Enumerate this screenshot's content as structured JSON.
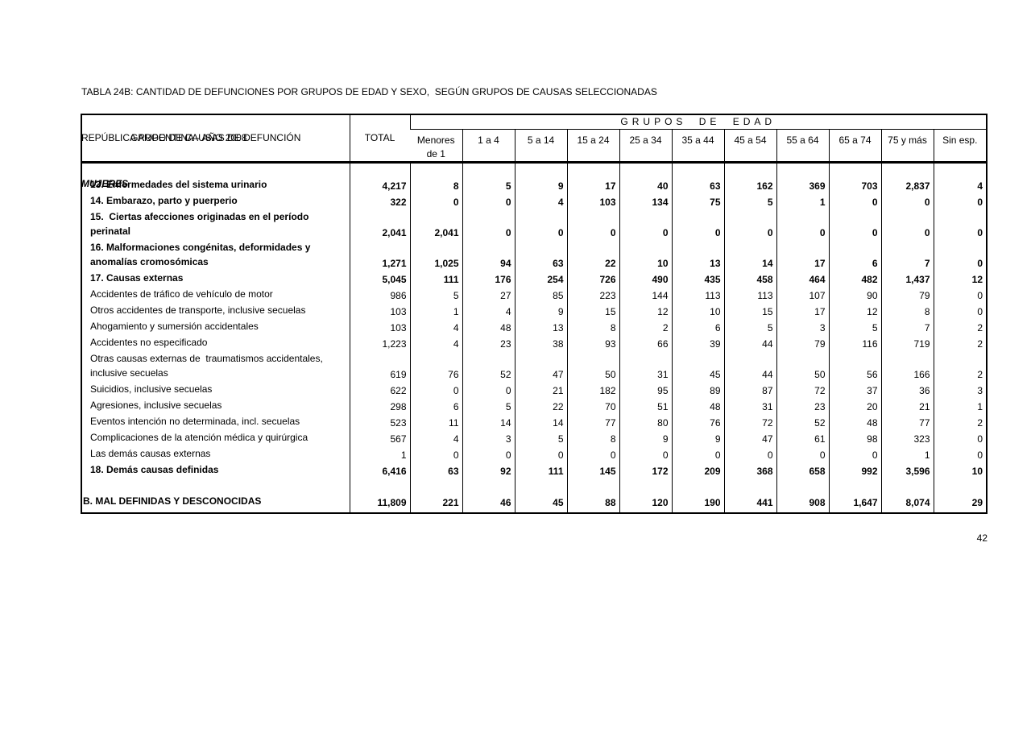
{
  "title": {
    "line1": "TABLA 24B: CANTIDAD DE DEFUNCIONES POR GRUPOS DE EDAD Y SEXO,  SEGÚN GRUPOS DE CAUSAS SELECCIONADAS",
    "line2": "REPÚBLICA ARGENTINA - AÑO 2008",
    "line3": "MUJERES"
  },
  "table": {
    "causes_header": "GRUPO DE CAUSAS DE DEFUNCIÓN",
    "total_header": "TOTAL",
    "age_groups_header": "GRUPOS DE EDAD",
    "age_columns": [
      "Menores\nde 1",
      "1 a 4",
      "5 a 14",
      "15 a 24",
      "25 a 34",
      "35 a 44",
      "45 a 54",
      "55 a 64",
      "65 a 74",
      "75 y más",
      "Sin esp."
    ],
    "rows": [
      {
        "type": "spacer"
      },
      {
        "label": "13. Enfermedades del sistema urinario",
        "bold": true,
        "values": [
          "4,217",
          "8",
          "5",
          "9",
          "17",
          "40",
          "63",
          "162",
          "369",
          "703",
          "2,837",
          "4"
        ]
      },
      {
        "label": "14. Embarazo, parto y puerperio",
        "bold": true,
        "values": [
          "322",
          "0",
          "0",
          "4",
          "103",
          "134",
          "75",
          "5",
          "1",
          "0",
          "0",
          "0"
        ]
      },
      {
        "label": "15.  Ciertas afecciones originadas en el período\nperinatal",
        "bold": true,
        "values": [
          "2,041",
          "2,041",
          "0",
          "0",
          "0",
          "0",
          "0",
          "0",
          "0",
          "0",
          "0",
          "0"
        ]
      },
      {
        "label": "16. Malformaciones congénitas, deformidades y\nanomalías cromosómicas",
        "bold": true,
        "values": [
          "1,271",
          "1,025",
          "94",
          "63",
          "22",
          "10",
          "13",
          "14",
          "17",
          "6",
          "7",
          "0"
        ]
      },
      {
        "label": "17. Causas externas",
        "bold": true,
        "values": [
          "5,045",
          "111",
          "176",
          "254",
          "726",
          "490",
          "435",
          "458",
          "464",
          "482",
          "1,437",
          "12"
        ]
      },
      {
        "label": "Accidentes de tráfico de vehículo de motor",
        "bold": false,
        "values": [
          "986",
          "5",
          "27",
          "85",
          "223",
          "144",
          "113",
          "113",
          "107",
          "90",
          "79",
          "0"
        ]
      },
      {
        "label": "Otros accidentes de transporte, inclusive secuelas",
        "bold": false,
        "values": [
          "103",
          "1",
          "4",
          "9",
          "15",
          "12",
          "10",
          "15",
          "17",
          "12",
          "8",
          "0"
        ]
      },
      {
        "label": "Ahogamiento y sumersión accidentales",
        "bold": false,
        "values": [
          "103",
          "4",
          "48",
          "13",
          "8",
          "2",
          "6",
          "5",
          "3",
          "5",
          "7",
          "2"
        ]
      },
      {
        "label": "Accidentes no especificado",
        "bold": false,
        "values": [
          "1,223",
          "4",
          "23",
          "38",
          "93",
          "66",
          "39",
          "44",
          "79",
          "116",
          "719",
          "2"
        ]
      },
      {
        "label": "Otras causas externas de  traumatismos accidentales,\ninclusive secuelas",
        "bold": false,
        "values": [
          "619",
          "76",
          "52",
          "47",
          "50",
          "31",
          "45",
          "44",
          "50",
          "56",
          "166",
          "2"
        ]
      },
      {
        "label": "Suicidios, inclusive secuelas",
        "bold": false,
        "values": [
          "622",
          "0",
          "0",
          "21",
          "182",
          "95",
          "89",
          "87",
          "72",
          "37",
          "36",
          "3"
        ]
      },
      {
        "label": "Agresiones, inclusive secuelas",
        "bold": false,
        "values": [
          "298",
          "6",
          "5",
          "22",
          "70",
          "51",
          "48",
          "31",
          "23",
          "20",
          "21",
          "1"
        ]
      },
      {
        "label": "Eventos intención no determinada, incl. secuelas",
        "bold": false,
        "values": [
          "523",
          "11",
          "14",
          "14",
          "77",
          "80",
          "76",
          "72",
          "52",
          "48",
          "77",
          "2"
        ]
      },
      {
        "label": "Complicaciones de la atención médica y quirúrgica",
        "bold": false,
        "values": [
          "567",
          "4",
          "3",
          "5",
          "8",
          "9",
          "9",
          "47",
          "61",
          "98",
          "323",
          "0"
        ]
      },
      {
        "label": "Las demás causas externas",
        "bold": false,
        "values": [
          "1",
          "0",
          "0",
          "0",
          "0",
          "0",
          "0",
          "0",
          "0",
          "0",
          "1",
          "0"
        ]
      },
      {
        "label": "18. Demás causas definidas",
        "bold": true,
        "values": [
          "6,416",
          "63",
          "92",
          "111",
          "145",
          "172",
          "209",
          "368",
          "658",
          "992",
          "3,596",
          "10"
        ]
      },
      {
        "type": "spacer"
      },
      {
        "label": "B. MAL DEFINIDAS Y DESCONOCIDAS",
        "bold": true,
        "flush": true,
        "values": [
          "11,809",
          "221",
          "46",
          "45",
          "88",
          "120",
          "190",
          "441",
          "908",
          "1,647",
          "8,074",
          "29"
        ]
      },
      {
        "type": "filler"
      }
    ]
  },
  "page_number": "42"
}
